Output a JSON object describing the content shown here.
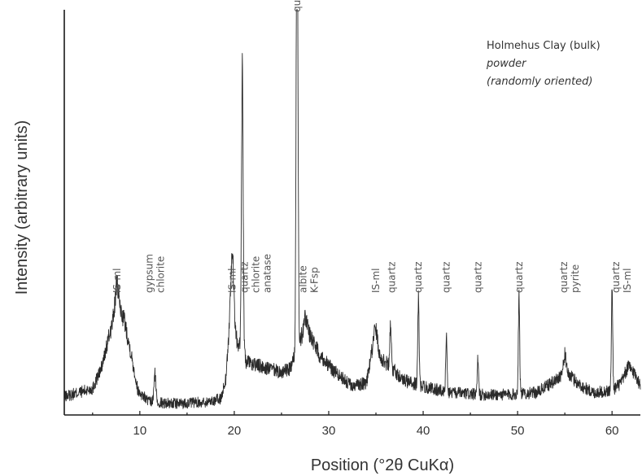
{
  "chart_data": {
    "type": "line",
    "xlabel": "Position (°2θ CuKα)",
    "ylabel": "Intensity (arbitrary units)",
    "xlim": [
      2,
      63
    ],
    "ylim": [
      0,
      1000
    ],
    "xticks": [
      10,
      20,
      30,
      40,
      50,
      60
    ],
    "legend": {
      "title": "Holmehus Clay (bulk)",
      "line2": "powder",
      "line3": "(randomly oriented)"
    },
    "background": [
      [
        2,
        45
      ],
      [
        5,
        65
      ],
      [
        6,
        120
      ],
      [
        6.8,
        200
      ],
      [
        7.5,
        260
      ],
      [
        8.3,
        240
      ],
      [
        9,
        160
      ],
      [
        9.8,
        60
      ],
      [
        11,
        32
      ],
      [
        14,
        28
      ],
      [
        17,
        32
      ],
      [
        18.6,
        40
      ],
      [
        19.1,
        90
      ],
      [
        19.6,
        250
      ],
      [
        20.3,
        180
      ],
      [
        21.3,
        130
      ],
      [
        23.5,
        115
      ],
      [
        25,
        105
      ],
      [
        26,
        115
      ],
      [
        27,
        190
      ],
      [
        27.8,
        210
      ],
      [
        29,
        150
      ],
      [
        30.5,
        110
      ],
      [
        32.5,
        70
      ],
      [
        34,
        80
      ],
      [
        34.7,
        170
      ],
      [
        35.5,
        140
      ],
      [
        36.5,
        120
      ],
      [
        38,
        85
      ],
      [
        40,
        70
      ],
      [
        43,
        55
      ],
      [
        46,
        50
      ],
      [
        49,
        50
      ],
      [
        52,
        55
      ],
      [
        54,
        85
      ],
      [
        55,
        110
      ],
      [
        56.5,
        75
      ],
      [
        58,
        55
      ],
      [
        60,
        60
      ],
      [
        61,
        80
      ],
      [
        61.7,
        120
      ],
      [
        62.5,
        100
      ],
      [
        63,
        70
      ]
    ],
    "peaks": [
      {
        "x": 7.6,
        "height": 60,
        "width": 0.2
      },
      {
        "x": 11.6,
        "height": 70,
        "width": 0.1
      },
      {
        "x": 19.8,
        "height": 160,
        "width": 0.15
      },
      {
        "x": 20.85,
        "height": 700,
        "width": 0.09
      },
      {
        "x": 26.65,
        "height": 1250,
        "width": 0.09
      },
      {
        "x": 27.5,
        "height": 40,
        "width": 0.15
      },
      {
        "x": 35.0,
        "height": 50,
        "width": 0.2
      },
      {
        "x": 36.55,
        "height": 110,
        "width": 0.08
      },
      {
        "x": 39.5,
        "height": 210,
        "width": 0.07
      },
      {
        "x": 42.45,
        "height": 135,
        "width": 0.07
      },
      {
        "x": 45.8,
        "height": 85,
        "width": 0.07
      },
      {
        "x": 50.15,
        "height": 245,
        "width": 0.07
      },
      {
        "x": 55.0,
        "height": 40,
        "width": 0.12
      },
      {
        "x": 60.0,
        "height": 245,
        "width": 0.07
      }
    ],
    "noise": 40,
    "peak_labels": [
      {
        "x": 7.6,
        "lines": [
          "IS-ml"
        ]
      },
      {
        "x": 11.6,
        "lines": [
          "gypsum",
          "chlorite"
        ]
      },
      {
        "x": 19.8,
        "lines": [
          "IS-ml"
        ]
      },
      {
        "x": 22.3,
        "lines": [
          "quartz",
          "chlorite",
          "anatase"
        ]
      },
      {
        "x": 27.9,
        "lines": [
          "albite",
          "K-Fsp"
        ]
      },
      {
        "x": 26.65,
        "lines": [
          "quartz"
        ],
        "high": true
      },
      {
        "x": 35.0,
        "lines": [
          "IS-ml"
        ]
      },
      {
        "x": 36.7,
        "lines": [
          "quartz"
        ]
      },
      {
        "x": 39.5,
        "lines": [
          "quartz"
        ]
      },
      {
        "x": 42.45,
        "lines": [
          "quartz"
        ]
      },
      {
        "x": 45.8,
        "lines": [
          "quartz"
        ]
      },
      {
        "x": 50.15,
        "lines": [
          "quartz"
        ]
      },
      {
        "x": 55.5,
        "lines": [
          "quartz",
          "pyrite"
        ]
      },
      {
        "x": 61.0,
        "lines": [
          "quartz",
          "IS-ml"
        ]
      }
    ]
  }
}
